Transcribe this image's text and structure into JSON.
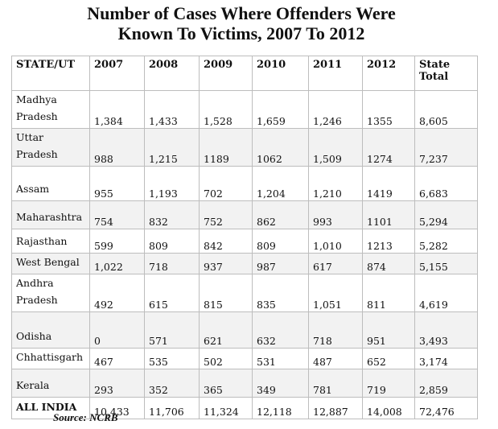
{
  "title_line1": "Number of Cases Where Offenders Were",
  "title_line2": "Known To Victims, 2007 To 2012",
  "headers": [
    "STATE/UT",
    "2007",
    "2008",
    "2009",
    "2010",
    "2011",
    "2012",
    "State Total"
  ],
  "rows": [
    {
      "state": "Madhya Pradesh",
      "values": [
        "1,384",
        "1,433",
        "1,528",
        "1,659",
        "1,246",
        "1355",
        "8,605"
      ]
    },
    {
      "state": "Uttar Pradesh",
      "values": [
        "988",
        "1,215",
        "1189",
        "1062",
        "1,509",
        "1274",
        "7,237"
      ]
    },
    {
      "state": "Assam",
      "values": [
        "955",
        "1,193",
        "702",
        "1,204",
        "1,210",
        "1419",
        "6,683"
      ]
    },
    {
      "state": "Maharashtra",
      "values": [
        "754",
        "832",
        "752",
        "862",
        "993",
        "1101",
        "5,294"
      ]
    },
    {
      "state": "Rajasthan",
      "values": [
        "599",
        "809",
        "842",
        "809",
        "1,010",
        "1213",
        "5,282"
      ]
    },
    {
      "state": "West Bengal",
      "values": [
        "1,022",
        "718",
        "937",
        "987",
        "617",
        "874",
        "5,155"
      ]
    },
    {
      "state": "Andhra Pradesh",
      "values": [
        "492",
        "615",
        "815",
        "835",
        "1,051",
        "811",
        "4,619"
      ]
    },
    {
      "state": "Odisha",
      "values": [
        "0",
        "571",
        "621",
        "632",
        "718",
        "951",
        "3,493"
      ]
    },
    {
      "state": "Chhattisgarh",
      "values": [
        "467",
        "535",
        "502",
        "531",
        "487",
        "652",
        "3,174"
      ]
    },
    {
      "state": "Kerala",
      "values": [
        "293",
        "352",
        "365",
        "349",
        "781",
        "719",
        "2,859"
      ]
    },
    {
      "state": "ALL INDIA",
      "values": [
        "10,433",
        "11,706",
        "11,324",
        "12,118",
        "12,887",
        "14,008",
        "72,476"
      ]
    }
  ],
  "source": "Source: NCRB"
}
